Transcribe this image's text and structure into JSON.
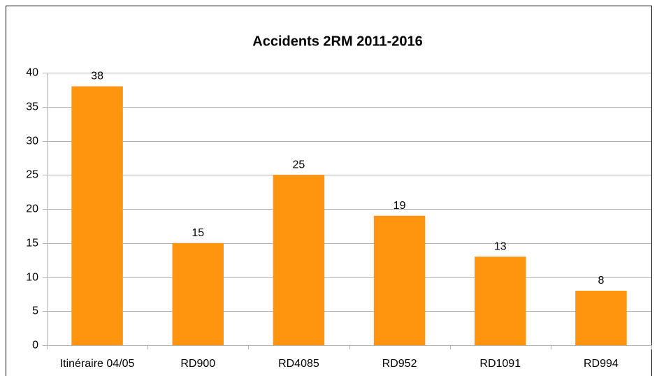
{
  "chart_data": {
    "type": "bar",
    "title": "Accidents 2RM 2011-2016",
    "categories": [
      "Itinéraire 04/05",
      "RD900",
      "RD4085",
      "RD952",
      "RD1091",
      "RD994"
    ],
    "values": [
      38,
      15,
      25,
      19,
      13,
      8
    ],
    "color": "#ff950e",
    "ylim": [
      0,
      40
    ],
    "yticks": [
      0,
      5,
      10,
      15,
      20,
      25,
      30,
      35,
      40
    ],
    "grid": true
  }
}
